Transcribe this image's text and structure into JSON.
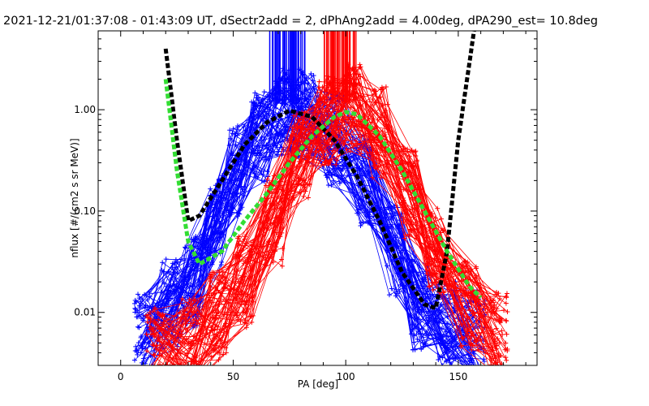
{
  "chart_data": {
    "type": "line",
    "title": "2021-12-21/01:37:08 - 01:43:09 UT, dSectr2add = 2, dPhAng2add = 4.00deg, dPA290_est=  10.8deg",
    "xlabel": "PA [deg]",
    "ylabel": "nflux [#/(cm2 s sr MeV)]",
    "xlim": [
      -10,
      185
    ],
    "ylim": [
      0.003,
      6.0
    ],
    "yscale": "log",
    "grid": false,
    "xticks": [
      0,
      50,
      100,
      150
    ],
    "xtick_labels": [
      "0",
      "50",
      "100",
      "150"
    ],
    "yticks": [
      0.01,
      0.1,
      1.0
    ],
    "ytick_labels": [
      "0.01",
      "0.10",
      "1.00"
    ],
    "colors": {
      "blue": "#0000ff",
      "red": "#ff0000",
      "black": "#000000",
      "green": "#33dd33"
    },
    "series": [
      {
        "color": "blue",
        "style": "line+plus",
        "x": [
          10,
          22,
          32,
          42,
          52,
          62,
          72,
          82,
          95,
          108,
          122,
          133,
          145,
          158
        ],
        "y": [
          0.006,
          0.012,
          0.02,
          0.08,
          0.25,
          0.55,
          0.95,
          0.9,
          0.5,
          0.2,
          0.04,
          0.012,
          0.008,
          0.006
        ]
      },
      {
        "color": "red",
        "style": "line+plus",
        "x": [
          15,
          30,
          43,
          55,
          68,
          80,
          92,
          103,
          115,
          128,
          140,
          155,
          168
        ],
        "y": [
          0.004,
          0.005,
          0.009,
          0.02,
          0.08,
          0.35,
          0.8,
          1.0,
          0.6,
          0.15,
          0.04,
          0.012,
          0.006
        ]
      },
      {
        "color": "black",
        "style": "dashed-thick",
        "x": [
          20,
          25,
          30,
          35,
          45,
          55,
          65,
          75,
          85,
          95,
          105,
          115,
          125,
          135,
          140,
          145,
          150,
          157
        ],
        "y": [
          4.0,
          0.5,
          0.08,
          0.09,
          0.2,
          0.45,
          0.75,
          0.98,
          0.85,
          0.5,
          0.22,
          0.08,
          0.025,
          0.012,
          0.011,
          0.04,
          0.5,
          6.0
        ]
      },
      {
        "color": "green",
        "style": "dashed-thick",
        "x": [
          20,
          25,
          30,
          35,
          45,
          55,
          65,
          75,
          85,
          95,
          100,
          105,
          115,
          125,
          135,
          145,
          155,
          160
        ],
        "y": [
          2.0,
          0.25,
          0.05,
          0.03,
          0.04,
          0.08,
          0.15,
          0.3,
          0.55,
          0.85,
          0.95,
          0.9,
          0.55,
          0.25,
          0.1,
          0.04,
          0.018,
          0.014
        ]
      }
    ]
  }
}
